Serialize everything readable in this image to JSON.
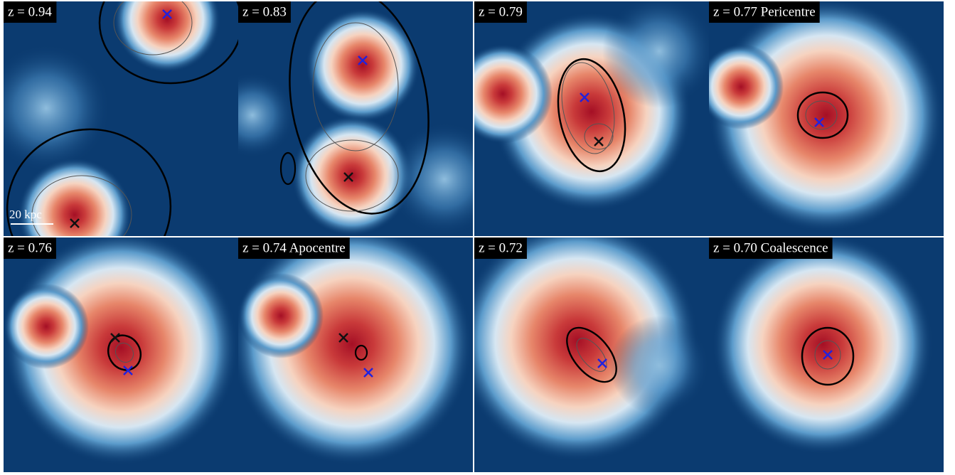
{
  "panels": [
    {
      "label": "z = 0.94"
    },
    {
      "label": "z = 0.83"
    },
    {
      "label": "z = 0.79"
    },
    {
      "label": "z = 0.77 Pericentre"
    },
    {
      "label": "z = 0.76"
    },
    {
      "label": "z = 0.74 Apocentre"
    },
    {
      "label": "z = 0.72"
    },
    {
      "label": "z = 0.70 Coalescence"
    }
  ],
  "scale_bar": "20 kpc"
}
